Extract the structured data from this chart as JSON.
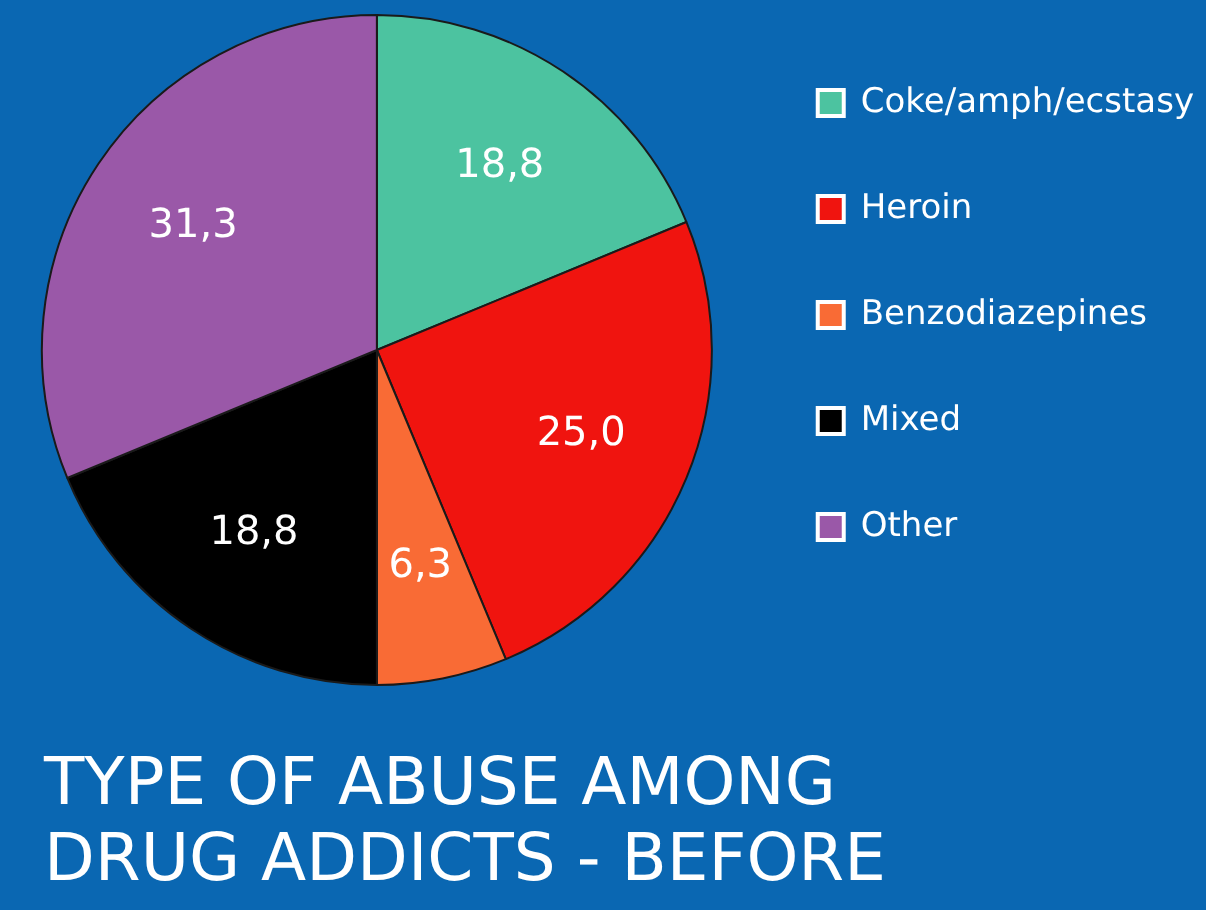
{
  "chart_data": {
    "type": "pie",
    "title": "TYPE OF ABUSE AMONG DRUG ADDICTS - BEFORE",
    "categories": [
      "Coke/amph/ecstasy",
      "Heroin",
      "Benzodiazepines",
      "Mixed",
      "Other"
    ],
    "values": [
      18.8,
      25.0,
      6.3,
      18.8,
      31.3
    ],
    "value_labels": [
      "18,8",
      "25,0",
      "6,3",
      "18,8",
      "31,3"
    ],
    "colors": [
      "#4cc3a0",
      "#f0140f",
      "#f96b35",
      "#000000",
      "#9a58a8"
    ],
    "legend": "right"
  }
}
